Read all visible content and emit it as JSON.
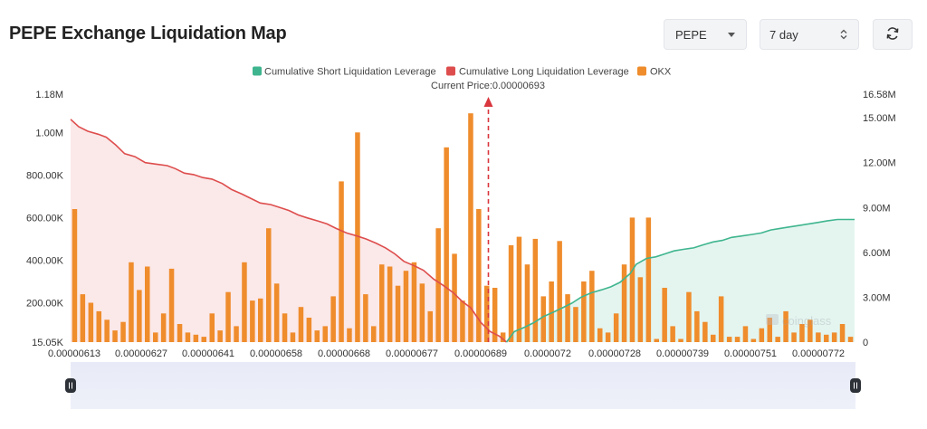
{
  "header": {
    "title": "PEPE Exchange Liquidation Map",
    "symbol_select": "PEPE",
    "range_select": "7 day"
  },
  "colors": {
    "short": "#3fb58f",
    "long": "#de4d4d",
    "okx": "#ef8c2c",
    "marker": "#d9363e"
  },
  "chart_data": {
    "type": "bar",
    "legend": [
      "Cumulative Short Liquidation Leverage",
      "Cumulative Long Liquidation Leverage",
      "OKX"
    ],
    "legend_position": "top",
    "current_price_label": "Current Price:0.00000693",
    "x_tick_labels": [
      "0.00000613",
      "0.00000627",
      "0.00000641",
      "0.00000658",
      "0.00000668",
      "0.00000677",
      "0.00000689",
      "0.0000072",
      "0.00000728",
      "0.00000739",
      "0.00000751",
      "0.00000772"
    ],
    "left_axis_ticks": [
      "15.05K",
      "200.00K",
      "400.00K",
      "600.00K",
      "800.00K",
      "1.00M",
      "1.18M"
    ],
    "right_axis_ticks": [
      "0",
      "3.00M",
      "6.00M",
      "9.00M",
      "12.00M",
      "15.00M",
      "16.58M"
    ],
    "ylim_left": [
      15050,
      1180000
    ],
    "ylim_right": [
      0,
      16580000
    ],
    "okx_values": [
      640000,
      240000,
      200000,
      160000,
      120000,
      70000,
      110000,
      390000,
      260000,
      370000,
      60000,
      150000,
      360000,
      100000,
      60000,
      50000,
      40000,
      150000,
      70000,
      250000,
      90000,
      390000,
      210000,
      220000,
      550000,
      290000,
      150000,
      60000,
      180000,
      130000,
      70000,
      90000,
      230000,
      770000,
      80000,
      1000000,
      240000,
      90000,
      380000,
      370000,
      280000,
      350000,
      390000,
      290000,
      160000,
      550000,
      930000,
      430000,
      210000,
      1090000,
      640000,
      280000,
      270000,
      60000,
      470000,
      510000,
      380000,
      500000,
      230000,
      300000,
      490000,
      240000,
      180000,
      300000,
      350000,
      80000,
      60000,
      150000,
      380000,
      600000,
      320000,
      600000,
      30000,
      270000,
      90000,
      30000,
      250000,
      160000,
      110000,
      50000,
      230000,
      40000,
      40000,
      90000,
      30000,
      80000,
      130000,
      40000,
      160000,
      60000,
      100000,
      120000,
      60000,
      50000,
      60000,
      100000,
      40000
    ],
    "long_cumulative": [
      [
        0.0,
        14.9
      ],
      [
        3.5,
        14.4
      ],
      [
        7.5,
        14.1
      ],
      [
        12.0,
        13.9
      ],
      [
        15.5,
        13.7
      ],
      [
        19.5,
        13.2
      ],
      [
        23.5,
        12.6
      ],
      [
        28.0,
        12.4
      ],
      [
        32.5,
        12.0
      ],
      [
        37.0,
        11.9
      ],
      [
        42.0,
        11.8
      ],
      [
        45.5,
        11.6
      ],
      [
        49.5,
        11.3
      ],
      [
        53.5,
        11.2
      ],
      [
        57.5,
        11.0
      ],
      [
        61.5,
        10.9
      ],
      [
        66.0,
        10.6
      ],
      [
        70.0,
        10.2
      ],
      [
        74.5,
        9.9
      ],
      [
        78.5,
        9.6
      ],
      [
        82.5,
        9.3
      ],
      [
        87.0,
        9.2
      ],
      [
        91.0,
        9.0
      ],
      [
        95.0,
        8.8
      ],
      [
        99.0,
        8.5
      ],
      [
        103.0,
        8.3
      ],
      [
        107.5,
        8.1
      ],
      [
        111.5,
        7.9
      ],
      [
        115.5,
        7.6
      ],
      [
        120.0,
        7.3
      ],
      [
        124.5,
        7.1
      ],
      [
        128.5,
        6.9
      ],
      [
        133.0,
        6.6
      ],
      [
        137.0,
        6.3
      ],
      [
        141.0,
        5.9
      ],
      [
        145.0,
        5.4
      ],
      [
        149.5,
        5.1
      ],
      [
        153.5,
        4.8
      ],
      [
        158.0,
        4.2
      ],
      [
        162.0,
        3.8
      ],
      [
        166.5,
        3.3
      ],
      [
        170.5,
        2.7
      ],
      [
        174.0,
        2.3
      ],
      [
        178.5,
        1.3
      ],
      [
        182.5,
        0.7
      ],
      [
        186.5,
        0.4
      ],
      [
        189.6,
        0.0
      ]
    ],
    "short_cumulative": [
      [
        189.6,
        0.0
      ],
      [
        193.0,
        0.7
      ],
      [
        197.5,
        1.0
      ],
      [
        201.5,
        1.3
      ],
      [
        205.5,
        1.7
      ],
      [
        210.0,
        2.0
      ],
      [
        214.0,
        2.3
      ],
      [
        218.0,
        2.6
      ],
      [
        222.0,
        3.0
      ],
      [
        226.5,
        3.3
      ],
      [
        231.0,
        3.5
      ],
      [
        235.0,
        3.7
      ],
      [
        239.0,
        4.0
      ],
      [
        243.5,
        4.6
      ],
      [
        246.0,
        5.2
      ],
      [
        250.5,
        5.6
      ],
      [
        254.5,
        5.7
      ],
      [
        258.5,
        5.9
      ],
      [
        262.5,
        6.1
      ],
      [
        266.5,
        6.2
      ],
      [
        271.0,
        6.3
      ],
      [
        275.0,
        6.5
      ],
      [
        279.5,
        6.7
      ],
      [
        283.5,
        6.8
      ],
      [
        287.5,
        7.0
      ],
      [
        292.0,
        7.1
      ],
      [
        296.5,
        7.2
      ],
      [
        300.5,
        7.3
      ],
      [
        304.5,
        7.5
      ],
      [
        308.5,
        7.6
      ],
      [
        312.5,
        7.7
      ],
      [
        317.0,
        7.8
      ],
      [
        321.0,
        7.9
      ],
      [
        325.0,
        8.0
      ],
      [
        329.0,
        8.1
      ],
      [
        333.5,
        8.2
      ],
      [
        337.5,
        8.2
      ],
      [
        341.0,
        8.2
      ]
    ]
  }
}
